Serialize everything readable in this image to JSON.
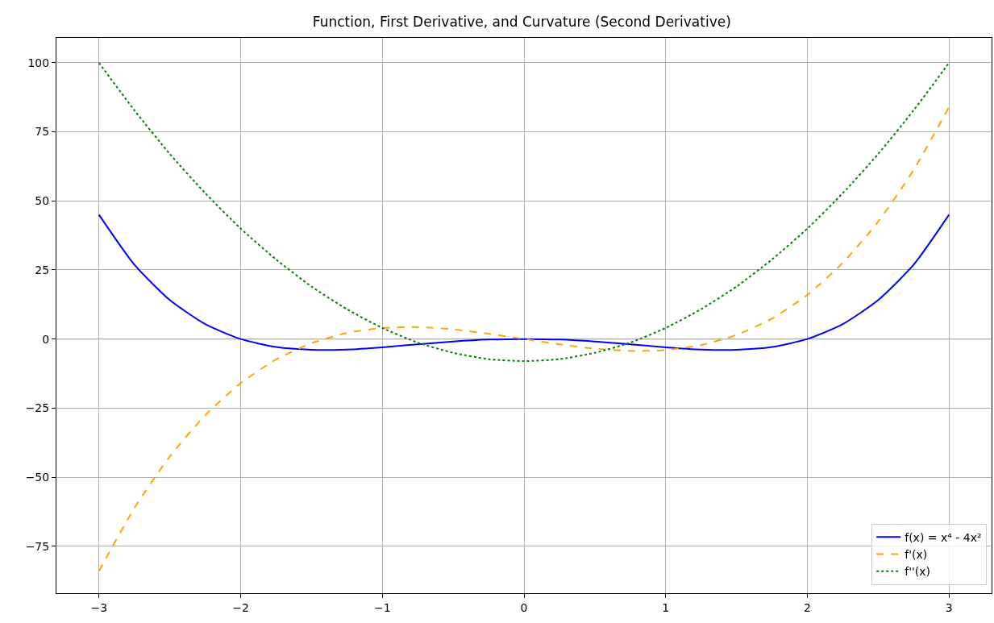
{
  "chart_data": {
    "type": "line",
    "title": "Function, First Derivative, and Curvature (Second Derivative)",
    "x": [
      -3,
      -2.75,
      -2.5,
      -2.25,
      -2,
      -1.75,
      -1.5,
      -1.25,
      -1,
      -0.75,
      -0.5,
      -0.25,
      0,
      0.25,
      0.5,
      0.75,
      1,
      1.25,
      1.5,
      1.75,
      2,
      2.25,
      2.5,
      2.75,
      3
    ],
    "series": [
      {
        "name": "f(x) = x⁴ - 4x²",
        "color": "#0000ff",
        "line_style": "solid",
        "values": [
          45,
          26.9,
          14.1,
          5.4,
          0,
          -2.9,
          -3.9,
          -3.8,
          -3,
          -1.9,
          -0.9,
          -0.2,
          0,
          -0.2,
          -0.9,
          -1.9,
          -3,
          -3.8,
          -3.9,
          -2.9,
          0,
          5.4,
          14.1,
          26.9,
          45
        ]
      },
      {
        "name": "f'(x)",
        "color": "#ffa500",
        "line_style": "dashed",
        "values": [
          -84,
          -61.2,
          -42.5,
          -27.6,
          -16,
          -7.4,
          -1.5,
          2.2,
          4,
          4.3,
          3.5,
          1.9,
          0,
          -1.9,
          -3.5,
          -4.3,
          -4,
          -2.2,
          1.5,
          7.4,
          16,
          27.6,
          42.5,
          61.2,
          84
        ]
      },
      {
        "name": "f''(x)",
        "color": "#008000",
        "line_style": "dotted",
        "values": [
          100,
          82.8,
          67,
          52.8,
          40,
          28.8,
          19,
          10.8,
          4,
          -1.3,
          -5,
          -7.3,
          -8,
          -7.3,
          -5,
          -1.3,
          4,
          10.8,
          19,
          28.8,
          40,
          52.8,
          67,
          82.8,
          100
        ]
      }
    ],
    "xlim": [
      -3.3,
      3.3
    ],
    "xticks": [
      -3,
      -2,
      -1,
      0,
      1,
      2,
      3
    ],
    "ylim": [
      -92,
      109
    ],
    "yticks": [
      -75,
      -50,
      -25,
      0,
      25,
      50,
      75,
      100
    ],
    "ref_lines": [
      {
        "axis": "y",
        "value": 0,
        "color": "#000000"
      }
    ],
    "grid": true,
    "legend": "bottom right",
    "marker": "none"
  }
}
